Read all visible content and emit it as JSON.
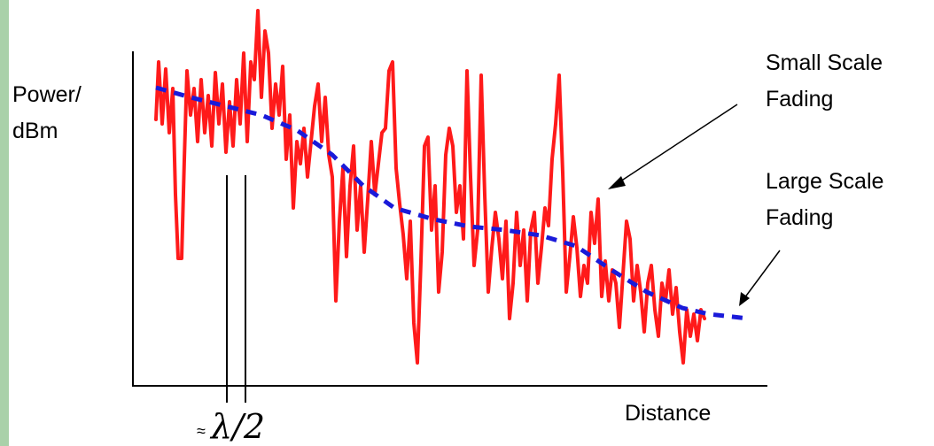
{
  "labels": {
    "y_axis_line1": "Power/",
    "y_axis_line2": "dBm",
    "x_axis": "Distance",
    "small_line1": "Small Scale",
    "small_line2": "Fading",
    "large_line1": "Large Scale",
    "large_line2": "Fading",
    "wavelength_prefix": "≈",
    "wavelength_symbol": "λ/2"
  },
  "colors": {
    "left_border": "#a9d1a9",
    "small_scale_trace": "#ff1a1a",
    "large_scale_trace": "#1a1ad9",
    "axes": "#000000"
  }
}
